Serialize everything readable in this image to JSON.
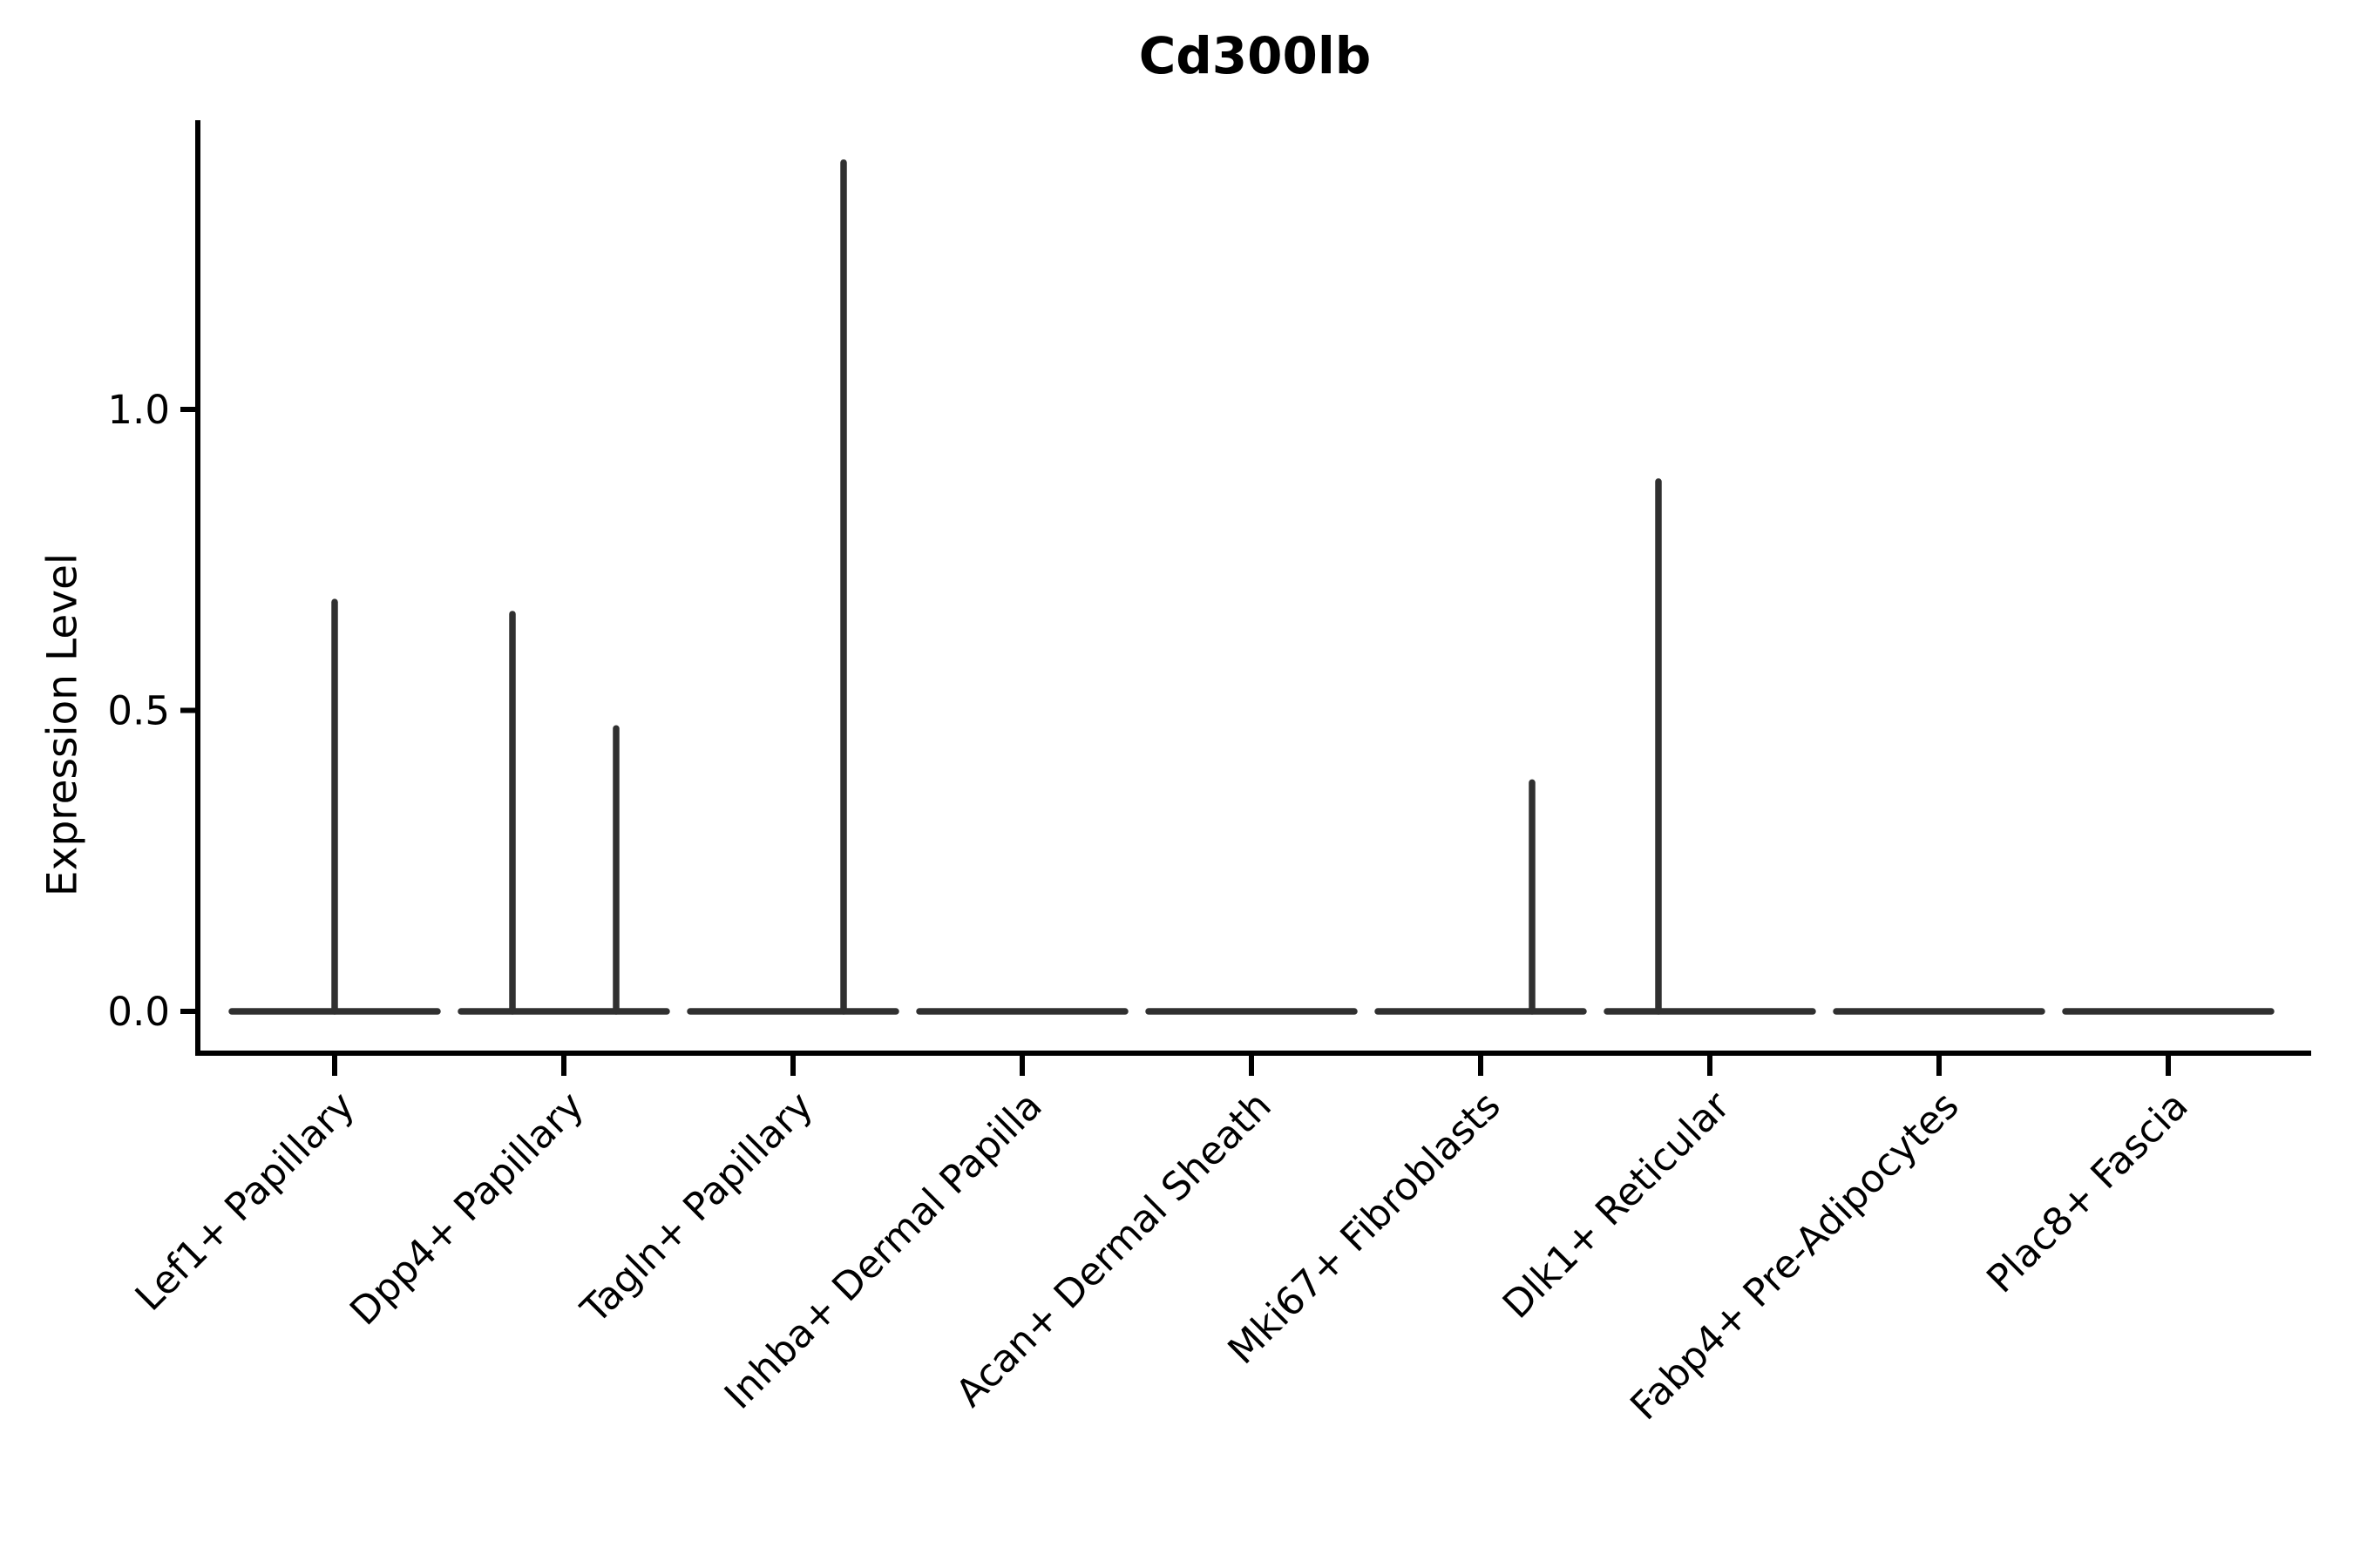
{
  "title": "Cd300lb",
  "y_axis": {
    "label": "Expression Level",
    "tick_labels": [
      "0.0",
      "0.5",
      "1.0"
    ],
    "tick_values": [
      0.0,
      0.5,
      1.0
    ]
  },
  "x_axis": {
    "categories": [
      "Lef1+ Papillary",
      "Dpp4+ Papillary",
      "Tagln+ Papillary",
      "Inhba+ Dermal Papilla",
      "Acan+ Dermal Sheath",
      "Mki67+ Fibroblasts",
      "Dlk1+ Reticular",
      "Fabp4+ Pre-Adipocytes",
      "Plac8+ Fascia"
    ]
  },
  "chart_data": {
    "type": "violin",
    "title": "Cd300lb",
    "xlabel": "",
    "ylabel": "Expression Level",
    "categories": [
      "Lef1+ Papillary",
      "Dpp4+ Papillary",
      "Tagln+ Papillary",
      "Inhba+ Dermal Papilla",
      "Acan+ Dermal Sheath",
      "Mki67+ Fibroblasts",
      "Dlk1+ Reticular",
      "Fabp4+ Pre-Adipocytes",
      "Plac8+ Fascia"
    ],
    "series": [
      {
        "name": "max_expression_spike",
        "values": [
          0.68,
          0.66,
          1.41,
          0,
          0,
          0.38,
          0.88,
          0,
          0
        ]
      },
      {
        "name": "secondary_expression_spike",
        "values": [
          0,
          0.47,
          0,
          0,
          0,
          0,
          0,
          0,
          0
        ]
      }
    ],
    "violins": [
      {
        "category": "Lef1+ Papillary",
        "baseline_value": 0.0,
        "spikes": [
          {
            "dx": 0,
            "value": 0.68
          }
        ]
      },
      {
        "category": "Dpp4+ Papillary",
        "baseline_value": 0.0,
        "spikes": [
          {
            "dx": -59,
            "value": 0.66
          },
          {
            "dx": 60,
            "value": 0.47
          }
        ]
      },
      {
        "category": "Tagln+ Papillary",
        "baseline_value": 0.0,
        "spikes": [
          {
            "dx": 58,
            "value": 1.41
          }
        ]
      },
      {
        "category": "Inhba+ Dermal Papilla",
        "baseline_value": 0.0,
        "spikes": []
      },
      {
        "category": "Acan+ Dermal Sheath",
        "baseline_value": 0.0,
        "spikes": []
      },
      {
        "category": "Mki67+ Fibroblasts",
        "baseline_value": 0.0,
        "spikes": [
          {
            "dx": 59,
            "value": 0.38
          }
        ]
      },
      {
        "category": "Dlk1+ Reticular",
        "baseline_value": 0.0,
        "spikes": [
          {
            "dx": -59,
            "value": 0.88
          }
        ]
      },
      {
        "category": "Fabp4+ Pre-Adipocytes",
        "baseline_value": 0.0,
        "spikes": []
      },
      {
        "category": "Plac8+ Fascia",
        "baseline_value": 0.0,
        "spikes": []
      }
    ],
    "y_ticks": [
      0.0,
      0.5,
      1.0
    ],
    "ylim": [
      -0.07,
      1.48
    ],
    "grid": false,
    "legend": "none",
    "colors": {
      "violin_line": "#303030",
      "axis": "#000000",
      "text": "#000000",
      "background": "#ffffff"
    }
  }
}
